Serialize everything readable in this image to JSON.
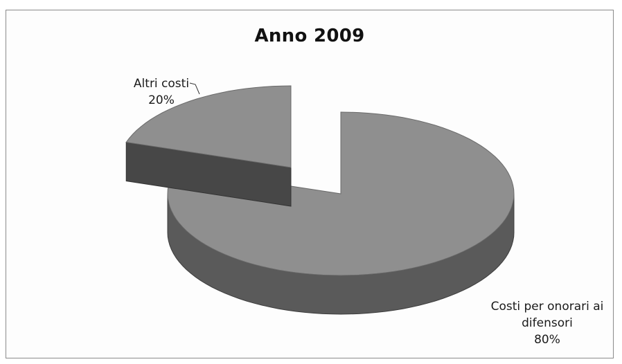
{
  "chart_data": {
    "type": "pie",
    "title": "Anno 2009",
    "slices": [
      {
        "label_lines": [
          "Costi per onorari ai",
          "difensori"
        ],
        "percent_label": "80%",
        "value": 80
      },
      {
        "label_lines": [
          "Altri costi"
        ],
        "percent_label": "20%",
        "value": 20
      }
    ],
    "style": "3d-exploded",
    "colors": {
      "top": "#8f8f8f",
      "side": "#5a5a5a",
      "side_dark": "#474747"
    }
  }
}
